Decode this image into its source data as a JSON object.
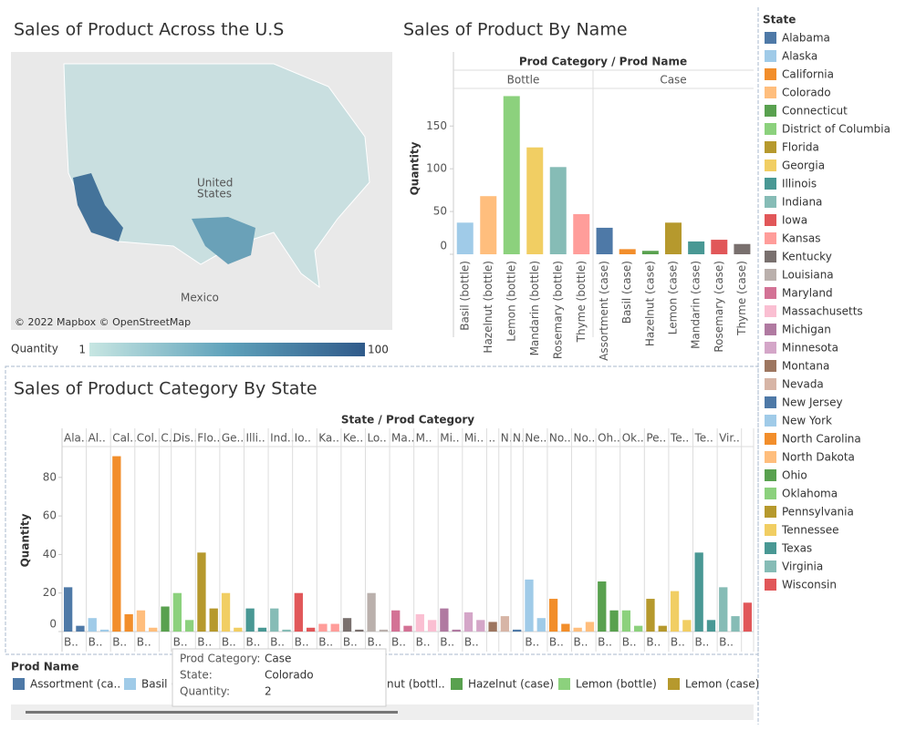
{
  "map": {
    "title": "Sales of Product Across the U.S",
    "labels": [
      "United",
      "States",
      "Mexico"
    ],
    "attribution": "© 2022 Mapbox © OpenStreetMap",
    "legend": {
      "title": "Quantity",
      "min": 1,
      "max": 100
    }
  },
  "chart_data": [
    {
      "type": "bar",
      "title": "Sales of Product By Name",
      "header": "Prod Category / Prod Name",
      "y_label": "Quantity",
      "ylim": [
        0,
        194
      ],
      "yticks": [
        0,
        50,
        100,
        150
      ],
      "groups": [
        {
          "name": "Bottle",
          "categories": [
            "Basil (bottle)",
            "Hazelnut (bottle)",
            "Lemon (bottle)",
            "Mandarin (bottle)",
            "Rosemary (bottle)",
            "Thyme (bottle)"
          ],
          "values": [
            37,
            68,
            185,
            125,
            102,
            47
          ],
          "colors": [
            "#a0cbe8",
            "#ffbe7d",
            "#8cd17d",
            "#f1ce63",
            "#86bcb6",
            "#ff9d9a"
          ]
        },
        {
          "name": "Case",
          "categories": [
            "Assortment (case)",
            "Basil (case)",
            "Hazelnut (case)",
            "Lemon (case)",
            "Mandarin (case)",
            "Rosemary (case)",
            "Thyme (case)"
          ],
          "values": [
            31,
            6,
            4,
            37,
            15,
            17,
            12
          ],
          "colors": [
            "#4e79a7",
            "#f28e2b",
            "#59a14f",
            "#b6992d",
            "#499894",
            "#e15759",
            "#79706e"
          ]
        }
      ]
    },
    {
      "type": "bar",
      "title": "Sales of Product Category By State",
      "header": "State / Prod Category",
      "y_label": "Quantity",
      "ylim": [
        0,
        96
      ],
      "yticks": [
        0,
        20,
        40,
        60,
        80
      ],
      "groups": [
        {
          "name": "Ala..",
          "label": "B..",
          "values": [
            23,
            3
          ]
        },
        {
          "name": "Al..",
          "label": "B..",
          "values": [
            7,
            1
          ]
        },
        {
          "name": "Cal..",
          "label": "B..",
          "values": [
            91,
            9
          ]
        },
        {
          "name": "Col..",
          "label": "B..",
          "values": [
            11,
            2
          ]
        },
        {
          "name": "C..",
          "values": [
            13
          ]
        },
        {
          "name": "Dis..",
          "label": "B..",
          "values": [
            20,
            6
          ]
        },
        {
          "name": "Flo..",
          "label": "B..",
          "values": [
            41,
            12
          ]
        },
        {
          "name": "Ge..",
          "label": "B..",
          "values": [
            20,
            2
          ]
        },
        {
          "name": "Illi..",
          "label": "B..",
          "values": [
            12,
            2
          ]
        },
        {
          "name": "Ind..",
          "label": "B..",
          "values": [
            12,
            1
          ]
        },
        {
          "name": "Io..",
          "label": "B..",
          "values": [
            20,
            2
          ]
        },
        {
          "name": "Ka..",
          "label": "B..",
          "values": [
            4,
            4
          ]
        },
        {
          "name": "Ke..",
          "label": "B..",
          "values": [
            7,
            1
          ]
        },
        {
          "name": "Lo..",
          "label": "B..",
          "values": [
            20,
            1
          ]
        },
        {
          "name": "Ma..",
          "label": "B..",
          "values": [
            11,
            3
          ]
        },
        {
          "name": "M..",
          "label": "B..",
          "values": [
            9,
            6
          ]
        },
        {
          "name": "Mi..",
          "label": "B..",
          "values": [
            12,
            1
          ]
        },
        {
          "name": "Mi..",
          "label": "B..",
          "values": [
            10,
            6
          ]
        },
        {
          "name": "..",
          "values": [
            5
          ]
        },
        {
          "name": "N..",
          "values": [
            8
          ]
        },
        {
          "name": "N..",
          "values": [
            1
          ]
        },
        {
          "name": "Ne..",
          "label": "B..",
          "values": [
            27,
            7
          ]
        },
        {
          "name": "No..",
          "label": "B..",
          "values": [
            17,
            4
          ]
        },
        {
          "name": "No..",
          "label": "B..",
          "values": [
            2,
            5
          ]
        },
        {
          "name": "Oh..",
          "label": "B..",
          "values": [
            26,
            11
          ]
        },
        {
          "name": "Ok..",
          "label": "B..",
          "values": [
            11,
            3
          ]
        },
        {
          "name": "Pe..",
          "label": "B..",
          "values": [
            17,
            3
          ]
        },
        {
          "name": "Te..",
          "label": "B..",
          "values": [
            21,
            6
          ]
        },
        {
          "name": "Te..",
          "label": "B..",
          "values": [
            41,
            6
          ]
        },
        {
          "name": "Vir..",
          "label": "B..",
          "values": [
            23,
            8
          ]
        },
        {
          "values": [
            15
          ]
        }
      ]
    }
  ],
  "state_legend": {
    "title": "State",
    "items": [
      {
        "name": "Alabama",
        "color": "#4e79a7"
      },
      {
        "name": "Alaska",
        "color": "#a0cbe8"
      },
      {
        "name": "California",
        "color": "#f28e2b"
      },
      {
        "name": "Colorado",
        "color": "#ffbe7d"
      },
      {
        "name": "Connecticut",
        "color": "#59a14f"
      },
      {
        "name": "District of Columbia",
        "color": "#8cd17d"
      },
      {
        "name": "Florida",
        "color": "#b6992d"
      },
      {
        "name": "Georgia",
        "color": "#f1ce63"
      },
      {
        "name": "Illinois",
        "color": "#499894"
      },
      {
        "name": "Indiana",
        "color": "#86bcb6"
      },
      {
        "name": "Iowa",
        "color": "#e15759"
      },
      {
        "name": "Kansas",
        "color": "#ff9d9a"
      },
      {
        "name": "Kentucky",
        "color": "#79706e"
      },
      {
        "name": "Louisiana",
        "color": "#bab0ac"
      },
      {
        "name": "Maryland",
        "color": "#d37295"
      },
      {
        "name": "Massachusetts",
        "color": "#fabfd2"
      },
      {
        "name": "Michigan",
        "color": "#b07aa1"
      },
      {
        "name": "Minnesota",
        "color": "#d4a6c8"
      },
      {
        "name": "Montana",
        "color": "#9d7660"
      },
      {
        "name": "Nevada",
        "color": "#d7b5a6"
      },
      {
        "name": "New Jersey",
        "color": "#4e79a7"
      },
      {
        "name": "New York",
        "color": "#a0cbe8"
      },
      {
        "name": "North Carolina",
        "color": "#f28e2b"
      },
      {
        "name": "North Dakota",
        "color": "#ffbe7d"
      },
      {
        "name": "Ohio",
        "color": "#59a14f"
      },
      {
        "name": "Oklahoma",
        "color": "#8cd17d"
      },
      {
        "name": "Pennsylvania",
        "color": "#b6992d"
      },
      {
        "name": "Tennessee",
        "color": "#f1ce63"
      },
      {
        "name": "Texas",
        "color": "#499894"
      },
      {
        "name": "Virginia",
        "color": "#86bcb6"
      },
      {
        "name": "Wisconsin",
        "color": "#e15759"
      }
    ]
  },
  "prod_legend": {
    "title": "Prod Name",
    "items": [
      {
        "name": "Assortment (ca..",
        "color": "#4e79a7"
      },
      {
        "name": "Basil (",
        "color": "#a0cbe8"
      },
      {
        "name": "nut (bottl..",
        "color": "#ffbe7d"
      },
      {
        "name": "Hazelnut (case)",
        "color": "#59a14f"
      },
      {
        "name": "Lemon (bottle)",
        "color": "#8cd17d"
      },
      {
        "name": "Lemon (case)",
        "color": "#b6992d"
      }
    ]
  },
  "tooltip": {
    "rows": [
      [
        "Prod Category:",
        "Case"
      ],
      [
        "State:",
        "Colorado"
      ],
      [
        "Quantity:",
        2
      ]
    ]
  }
}
